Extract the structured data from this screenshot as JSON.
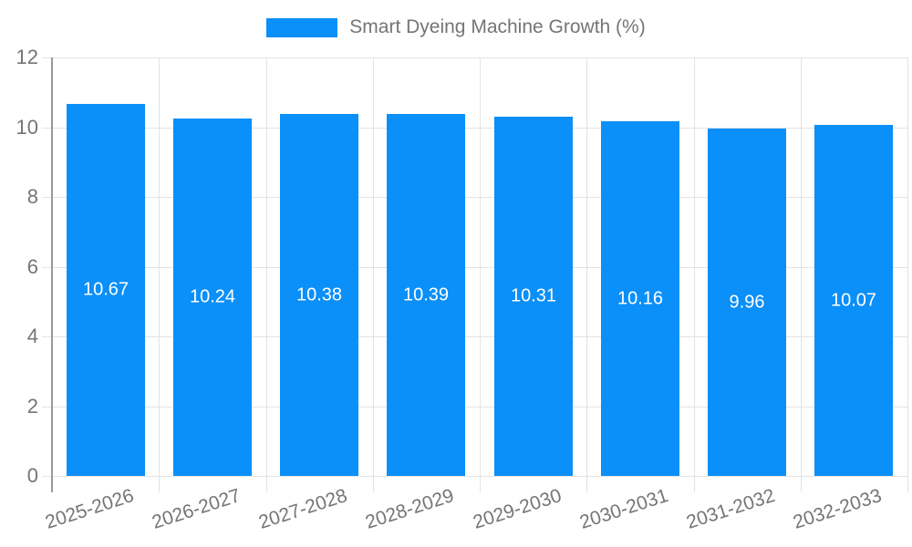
{
  "legend": {
    "label": "Smart Dyeing Machine Growth (%)"
  },
  "colors": {
    "bar": "#0b8ff8",
    "grid": "#e3e3e3",
    "axis": "#999999",
    "tick_label": "#757575",
    "value_label": "#ffffff",
    "background": "#ffffff"
  },
  "chart_data": {
    "type": "bar",
    "categories": [
      "2025-2026",
      "2026-2027",
      "2027-2028",
      "2028-2029",
      "2029-2030",
      "2030-2031",
      "2031-2032",
      "2032-2033"
    ],
    "values": [
      10.67,
      10.24,
      10.38,
      10.39,
      10.31,
      10.16,
      9.96,
      10.07
    ],
    "value_labels": [
      "10.67",
      "10.24",
      "10.38",
      "10.39",
      "10.31",
      "10.16",
      "9.96",
      "10.07"
    ],
    "title": "",
    "xlabel": "",
    "ylabel": "",
    "legend": "Smart Dyeing Machine Growth (%)",
    "legend_position": "top-center",
    "ylim": [
      0,
      12
    ],
    "yticks": [
      0,
      2,
      4,
      6,
      8,
      10,
      12
    ],
    "grid": true,
    "bar_labels_inside": true,
    "x_label_rotation_deg": -18
  }
}
